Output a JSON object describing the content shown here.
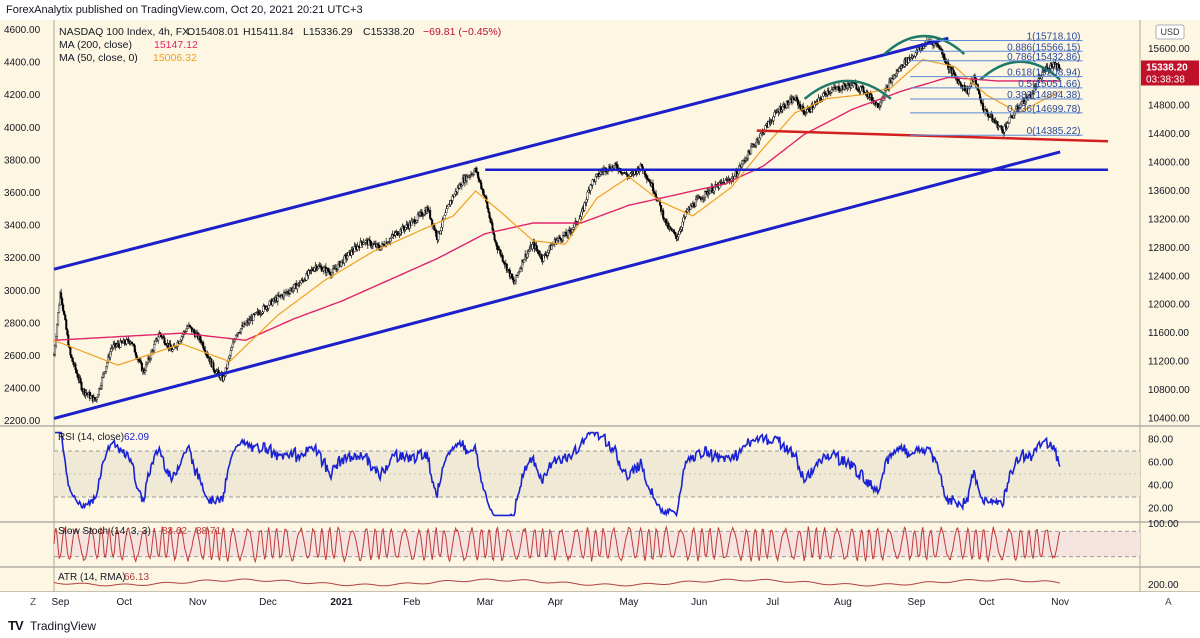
{
  "header": {
    "publisher": "ForexAnalytix published on TradingView.com, Oct 20, 2021 20:21 UTC+3"
  },
  "footer": {
    "logo": "TV",
    "brand": "TradingView"
  },
  "colors": {
    "background": "#fdf6e3",
    "candle": "#000000",
    "ma200": "#e0246a",
    "ma50": "#f0a020",
    "channel": "#1b20c8",
    "support": "#d21f1f",
    "fib": "#5a8ad8",
    "pattern": "#1f7a6a",
    "rsi": "#1a22d4",
    "stoch": "#c03a3a",
    "atr": "#b04040"
  },
  "chart_data": [
    {
      "type": "line",
      "subtype": "candlestick",
      "title": "NASDAQ 100 Index, 4h, FX",
      "ohlc_readout": [
        "O15408.01",
        "H15411.84",
        "L15336.29",
        "C15338.20",
        "−69.81 (−0.45%)"
      ],
      "indicator_labels": [
        {
          "label": "MA (200, close)",
          "value": "15147.12",
          "color": "#e0246a"
        },
        {
          "label": "MA (50, close, 0)",
          "value": "15006.32",
          "color": "#f0a020"
        }
      ],
      "currency": "USD",
      "last_price": "15338.20",
      "countdown": "03:38:38",
      "x_ticks": [
        "Sep",
        "Oct",
        "Nov",
        "Dec",
        "2021",
        "Feb",
        "Mar",
        "Apr",
        "May",
        "Jun",
        "Jul",
        "Aug",
        "Sep",
        "Oct",
        "Nov"
      ],
      "left_ticks": [
        "4600.00",
        "4400.00",
        "4200.00",
        "4000.00",
        "3800.00",
        "3600.00",
        "3400.00",
        "3200.00",
        "3000.00",
        "2800.00",
        "2600.00",
        "2400.00",
        "2200.00"
      ],
      "right_ticks": [
        "15600.00",
        "15200.00",
        "14800.00",
        "14400.00",
        "14000.00",
        "13600.00",
        "13200.00",
        "12800.00",
        "12400.00",
        "12000.00",
        "11600.00",
        "11200.00",
        "10800.00",
        "10400.00"
      ],
      "ylim": [
        10350,
        15950
      ],
      "price_path": [
        [
          0,
          11300
        ],
        [
          2,
          12200
        ],
        [
          5,
          11300
        ],
        [
          9,
          10800
        ],
        [
          13,
          10650
        ],
        [
          18,
          11400
        ],
        [
          24,
          11500
        ],
        [
          28,
          11050
        ],
        [
          33,
          11600
        ],
        [
          37,
          11350
        ],
        [
          42,
          11700
        ],
        [
          46,
          11500
        ],
        [
          50,
          11100
        ],
        [
          53,
          10950
        ],
        [
          57,
          11600
        ],
        [
          63,
          11850
        ],
        [
          67,
          12000
        ],
        [
          72,
          12150
        ],
        [
          77,
          12300
        ],
        [
          82,
          12550
        ],
        [
          87,
          12450
        ],
        [
          92,
          12700
        ],
        [
          97,
          12900
        ],
        [
          102,
          12800
        ],
        [
          107,
          13000
        ],
        [
          112,
          13150
        ],
        [
          117,
          13350
        ],
        [
          120,
          12950
        ],
        [
          124,
          13450
        ],
        [
          128,
          13750
        ],
        [
          132,
          13900
        ],
        [
          135,
          13500
        ],
        [
          138,
          12900
        ],
        [
          141,
          12600
        ],
        [
          144,
          12300
        ],
        [
          147,
          12650
        ],
        [
          150,
          12850
        ],
        [
          153,
          12650
        ],
        [
          157,
          12900
        ],
        [
          161,
          13000
        ],
        [
          165,
          13250
        ],
        [
          168,
          13700
        ],
        [
          172,
          13900
        ],
        [
          176,
          13950
        ],
        [
          180,
          13800
        ],
        [
          184,
          13950
        ],
        [
          188,
          13600
        ],
        [
          192,
          13100
        ],
        [
          195,
          12950
        ],
        [
          198,
          13300
        ],
        [
          201,
          13450
        ],
        [
          205,
          13600
        ],
        [
          209,
          13700
        ],
        [
          213,
          13800
        ],
        [
          217,
          14100
        ],
        [
          222,
          14450
        ],
        [
          227,
          14750
        ],
        [
          232,
          14900
        ],
        [
          235,
          14700
        ],
        [
          238,
          14800
        ],
        [
          242,
          15000
        ],
        [
          246,
          15050
        ],
        [
          250,
          15100
        ],
        [
          254,
          15000
        ],
        [
          258,
          14800
        ],
        [
          262,
          15150
        ],
        [
          266,
          15400
        ],
        [
          270,
          15550
        ],
        [
          274,
          15718
        ],
        [
          277,
          15650
        ],
        [
          280,
          15350
        ],
        [
          283,
          15150
        ],
        [
          286,
          15000
        ],
        [
          288,
          15200
        ],
        [
          291,
          14750
        ],
        [
          294,
          14600
        ],
        [
          297,
          14450
        ],
        [
          300,
          14650
        ],
        [
          303,
          14850
        ],
        [
          306,
          14950
        ],
        [
          310,
          15300
        ],
        [
          313,
          15400
        ],
        [
          315,
          15338
        ]
      ],
      "ma50_path": [
        [
          0,
          11500
        ],
        [
          20,
          11150
        ],
        [
          40,
          11450
        ],
        [
          55,
          11200
        ],
        [
          70,
          11850
        ],
        [
          85,
          12350
        ],
        [
          100,
          12750
        ],
        [
          115,
          13050
        ],
        [
          125,
          13250
        ],
        [
          132,
          13600
        ],
        [
          140,
          13300
        ],
        [
          150,
          12900
        ],
        [
          160,
          12850
        ],
        [
          170,
          13500
        ],
        [
          180,
          13800
        ],
        [
          190,
          13450
        ],
        [
          200,
          13250
        ],
        [
          212,
          13650
        ],
        [
          222,
          14200
        ],
        [
          232,
          14700
        ],
        [
          242,
          14900
        ],
        [
          252,
          14950
        ],
        [
          262,
          15050
        ],
        [
          272,
          15450
        ],
        [
          282,
          15350
        ],
        [
          292,
          14950
        ],
        [
          302,
          14700
        ],
        [
          315,
          15006
        ]
      ],
      "ma200_path": [
        [
          0,
          11500
        ],
        [
          20,
          11550
        ],
        [
          40,
          11600
        ],
        [
          60,
          11500
        ],
        [
          75,
          11800
        ],
        [
          90,
          12050
        ],
        [
          105,
          12350
        ],
        [
          120,
          12650
        ],
        [
          135,
          13000
        ],
        [
          150,
          13150
        ],
        [
          165,
          13150
        ],
        [
          180,
          13400
        ],
        [
          195,
          13550
        ],
        [
          210,
          13700
        ],
        [
          222,
          13950
        ],
        [
          235,
          14400
        ],
        [
          250,
          14750
        ],
        [
          265,
          15000
        ],
        [
          280,
          15200
        ],
        [
          295,
          15150
        ],
        [
          315,
          15147
        ]
      ],
      "channel_upper": [
        [
          0,
          12500
        ],
        [
          280,
          15750
        ]
      ],
      "channel_lower": [
        [
          0,
          10400
        ],
        [
          315,
          14150
        ]
      ],
      "horizontal_line": {
        "y": 13900,
        "x_from": 135,
        "x_to": 330
      },
      "support_line": [
        [
          220,
          14450
        ],
        [
          330,
          14300
        ]
      ],
      "head_shoulders": [
        {
          "x_from": 235,
          "x_to": 262,
          "peak": 15150
        },
        {
          "x_from": 260,
          "x_to": 285,
          "peak": 15780
        },
        {
          "x_from": 290,
          "x_to": 315,
          "peak": 15420
        }
      ],
      "fib_levels": [
        {
          "label": "1(15718.10)",
          "price": 15718.1
        },
        {
          "label": "0.886(15566.15)",
          "price": 15566.15
        },
        {
          "label": "0.786(15432.86)",
          "price": 15432.86
        },
        {
          "label": "0.618(15208.94)",
          "price": 15208.94
        },
        {
          "label": "0.5(15051.66)",
          "price": 15051.66
        },
        {
          "label": "0.382(14894.38)",
          "price": 14894.38
        },
        {
          "label": "0.236(14699.78)",
          "price": 14699.78
        },
        {
          "label": "0(14385.22)",
          "price": 14385.22
        }
      ],
      "fib_x_from": 268,
      "fib_x_to": 322
    },
    {
      "type": "line",
      "title": "RSI (14, close)",
      "value": "62.09",
      "ylim": [
        10,
        90
      ],
      "y_ticks": [
        "80.00",
        "60.00",
        "40.00",
        "20.00"
      ],
      "bands": [
        70,
        30
      ]
    },
    {
      "type": "line",
      "title": "Slow Stoch (14, 3, 3)",
      "values_text": [
        "83.62",
        "88.71"
      ],
      "ylim": [
        0,
        100
      ],
      "y_ticks": [
        "100.00"
      ],
      "bands": [
        80,
        20
      ]
    },
    {
      "type": "line",
      "title": "ATR (14, RMA)",
      "value": "66.13",
      "y_ticks": [
        "200.00"
      ]
    }
  ]
}
